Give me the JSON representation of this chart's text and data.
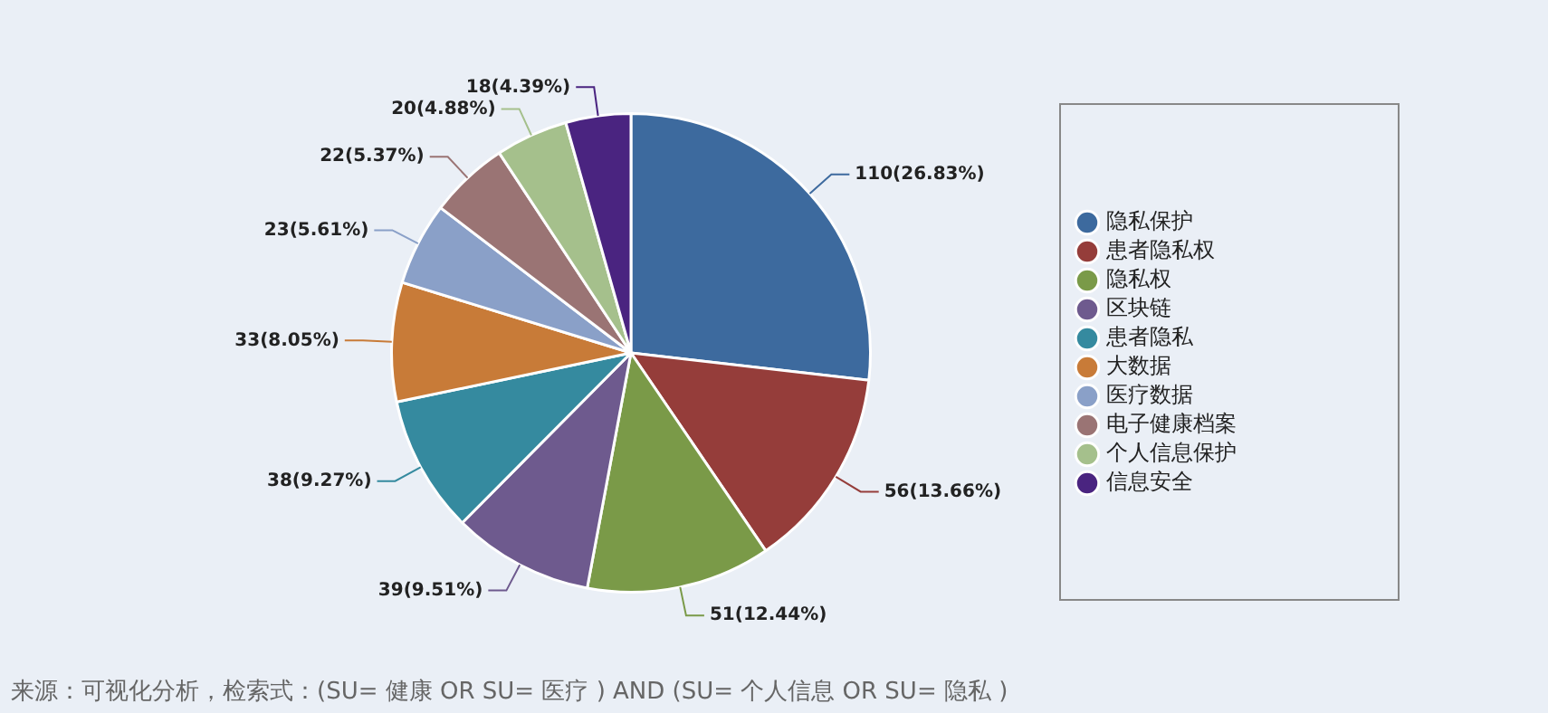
{
  "chart_data": {
    "type": "pie",
    "categories": [
      "隐私保护",
      "患者隐私权",
      "隐私权",
      "区块链",
      "患者隐私",
      "大数据",
      "医疗数据",
      "电子健康档案",
      "个人信息保护",
      "信息安全"
    ],
    "values": [
      110,
      56,
      51,
      39,
      38,
      33,
      23,
      22,
      20,
      18
    ],
    "colors": [
      "#3d6a9e",
      "#953d3a",
      "#7a9a48",
      "#6e5a8e",
      "#358a9f",
      "#c87b38",
      "#8aa0c8",
      "#9a7474",
      "#a5c08c",
      "#4a2480"
    ],
    "value_labels": [
      "110(26.83%)",
      "56(13.66%)",
      "51(12.44%)",
      "39(9.51%)",
      "38(9.27%)",
      "33(8.05%)",
      "23(5.61%)",
      "22(5.37%)",
      "20(4.88%)",
      "18(4.39%)"
    ],
    "legend": "right",
    "annotations": [
      "来源：可视化分析，检索式：(SU= 健康 OR SU= 医疗 ) AND (SU= 个人信息 OR SU= 隐私 )"
    ]
  }
}
